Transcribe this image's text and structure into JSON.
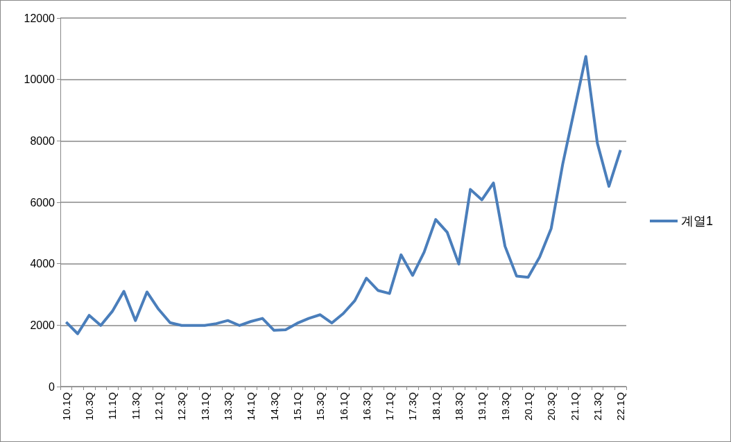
{
  "chart_data": {
    "type": "line",
    "categories": [
      "10.1Q",
      null,
      "10.3Q",
      null,
      "11.1Q",
      null,
      "11.3Q",
      null,
      "12.1Q",
      null,
      "12.3Q",
      null,
      "13.1Q",
      null,
      "13.3Q",
      null,
      "14.1Q",
      null,
      "14.3Q",
      null,
      "15.1Q",
      null,
      "15.3Q",
      null,
      "16.1Q",
      null,
      "16.3Q",
      null,
      "17.1Q",
      null,
      "17.3Q",
      null,
      "18.1Q",
      null,
      "18.3Q",
      null,
      "19.1Q",
      null,
      "19.3Q",
      null,
      "20.1Q",
      null,
      "20.3Q",
      null,
      "21.1Q",
      null,
      "21.3Q",
      null,
      "22.1Q"
    ],
    "series": [
      {
        "name": "계열1",
        "color": "#4a7ebb",
        "values": [
          2100,
          1720,
          2320,
          1990,
          2450,
          3100,
          2150,
          3080,
          2520,
          2080,
          1990,
          1990,
          1990,
          2050,
          2150,
          1990,
          2120,
          2220,
          1830,
          1850,
          2060,
          2220,
          2340,
          2070,
          2380,
          2800,
          3530,
          3130,
          3030,
          4290,
          3620,
          4380,
          5440,
          5020,
          3990,
          6420,
          6080,
          6630,
          4570,
          3600,
          3560,
          4220,
          5150,
          7250,
          9000,
          10750,
          7920,
          6520,
          7700
        ]
      }
    ],
    "ylim": [
      0,
      12000
    ],
    "yticks": [
      0,
      2000,
      4000,
      6000,
      8000,
      10000,
      12000
    ],
    "grid": "y",
    "legend": "right",
    "marker": "none",
    "line_style": "solid"
  }
}
